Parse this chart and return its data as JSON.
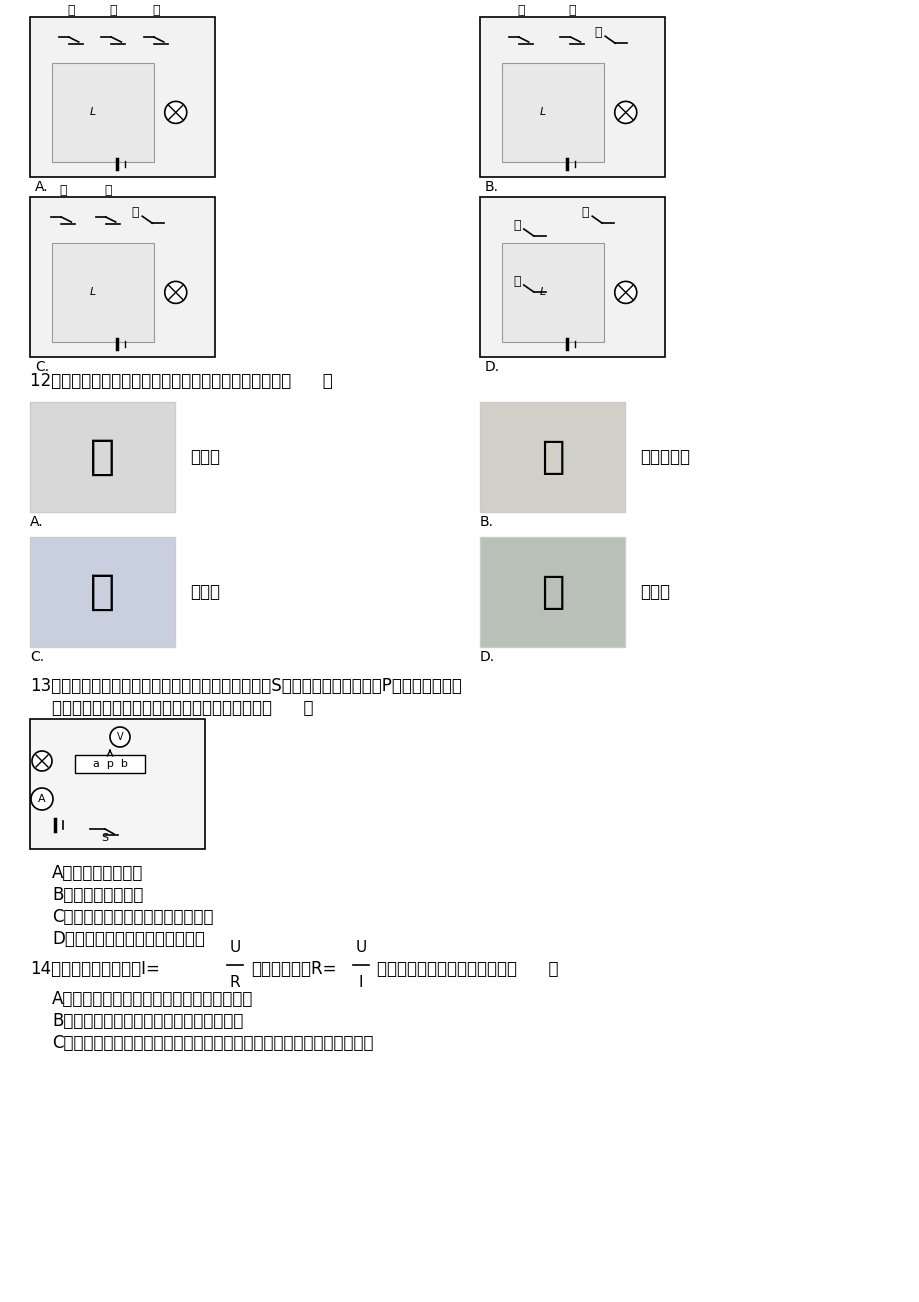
{
  "bg_color": "#ffffff",
  "text_color": "#000000",
  "title_fontsize": 13,
  "body_fontsize": 12,
  "q12_text": "12．如图所示的家用电器中，利用电流热效应工作的是（      ）",
  "q12_A": "电饭锅",
  "q12_B": "笔记本电脑",
  "q12_C": "电风扇",
  "q12_D": "电视机",
  "q13_line1": "13．如图所示的电路，电源电压恒定不变，闭合开关S，将滑动变阻器的滑片P向右移动的过程",
  "q13_line2": "中，下列说法正确的是（假定灯泡的电阻不变）（      ）",
  "q13_A": "A．电流表示数变小",
  "q13_B": "B．电压表示数变大",
  "q13_C": "C．电压表和电流表示数的比值变小",
  "q13_D": "D．电压表和电流表的示数都变小",
  "q14_line1": "14．根据欧姆定律公式I=",
  "q14_formula1_num": "U",
  "q14_formula1_den": "R",
  "q14_mid": "，可变形得到R=",
  "q14_formula2_num": "U",
  "q14_formula2_den": "I",
  "q14_end": "．对此，下列说法中正确的是（      ）",
  "q14_A": "A．通过导体的电流越大，则导体的电阻越小",
  "q14_B": "B．导体两端的电压为零时，其电阻也为零",
  "q14_C": "C．导体电阻的大小跟导体两端的电压成正比，跟通过导体的电流成反比"
}
